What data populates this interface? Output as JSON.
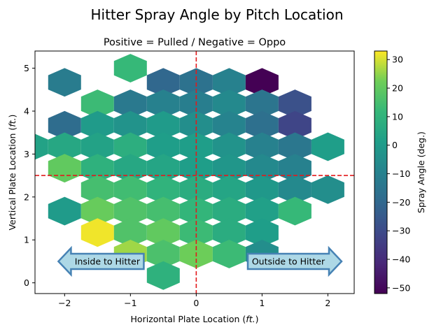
{
  "chart_data": {
    "type": "hexbin",
    "title": "Hitter Spray Angle by Pitch Location",
    "subtitle": "Positive = Pulled / Negative = Oppo",
    "xlabel": "Horizontal Plate Location ($ft.$)",
    "ylabel": "Vertical Plate Location ($ft.$)",
    "xlabel_text": "Horizontal Plate Location (",
    "xlabel_unit": "ft.",
    "ylabel_text": "Vertical Plate Location (",
    "ylabel_unit": "ft.",
    "label_close": ")",
    "xlim": [
      -2.45,
      2.4
    ],
    "ylim": [
      -0.25,
      5.4
    ],
    "xticks": [
      -2,
      -1,
      0,
      1,
      2
    ],
    "yticks": [
      0,
      1,
      2,
      3,
      4,
      5
    ],
    "reference_lines": {
      "x": 0,
      "y": 2.5,
      "color": "#e31a1c",
      "style": "dashed"
    },
    "colorbar": {
      "label": "Spray Angle (deg.)",
      "vmin": -52,
      "vmax": 33,
      "ticks": [
        30,
        20,
        10,
        0,
        -10,
        -20,
        -30,
        -40,
        -50
      ],
      "colormap": "viridis"
    },
    "hex_size_x": 0.5,
    "hex_size_y": 0.333,
    "cells": [
      {
        "x": -1.0,
        "y": 5.0,
        "value": 12
      },
      {
        "x": -2.0,
        "y": 4.67,
        "value": -12
      },
      {
        "x": -0.5,
        "y": 4.67,
        "value": -20
      },
      {
        "x": 0.0,
        "y": 4.67,
        "value": -16
      },
      {
        "x": 0.5,
        "y": 4.67,
        "value": -10
      },
      {
        "x": 1.0,
        "y": 4.67,
        "value": -52
      },
      {
        "x": -1.5,
        "y": 4.17,
        "value": 13
      },
      {
        "x": -1.0,
        "y": 4.17,
        "value": -13
      },
      {
        "x": -0.5,
        "y": 4.17,
        "value": -10
      },
      {
        "x": 0.0,
        "y": 4.17,
        "value": -11
      },
      {
        "x": 0.5,
        "y": 4.17,
        "value": -7
      },
      {
        "x": 1.0,
        "y": 4.17,
        "value": -15
      },
      {
        "x": 1.5,
        "y": 4.17,
        "value": -28
      },
      {
        "x": -2.0,
        "y": 3.67,
        "value": -18
      },
      {
        "x": -1.5,
        "y": 3.67,
        "value": 0
      },
      {
        "x": -1.0,
        "y": 3.67,
        "value": -3
      },
      {
        "x": -0.5,
        "y": 3.67,
        "value": 0
      },
      {
        "x": 0.0,
        "y": 3.67,
        "value": -5
      },
      {
        "x": 0.5,
        "y": 3.67,
        "value": -9
      },
      {
        "x": 1.0,
        "y": 3.67,
        "value": -17
      },
      {
        "x": 1.5,
        "y": 3.67,
        "value": -32
      },
      {
        "x": -2.5,
        "y": 3.17,
        "value": 3
      },
      {
        "x": -2.0,
        "y": 3.17,
        "value": 5
      },
      {
        "x": -1.5,
        "y": 3.17,
        "value": 3
      },
      {
        "x": -1.0,
        "y": 3.17,
        "value": 8
      },
      {
        "x": -0.5,
        "y": 3.17,
        "value": 1
      },
      {
        "x": 0.0,
        "y": 3.17,
        "value": 1
      },
      {
        "x": 0.5,
        "y": 3.17,
        "value": -3
      },
      {
        "x": 1.0,
        "y": 3.17,
        "value": -10
      },
      {
        "x": 1.5,
        "y": 3.17,
        "value": -14
      },
      {
        "x": 2.0,
        "y": 3.17,
        "value": 1
      },
      {
        "x": -2.0,
        "y": 2.67,
        "value": 20
      },
      {
        "x": -1.5,
        "y": 2.67,
        "value": 9
      },
      {
        "x": -1.0,
        "y": 2.67,
        "value": 5
      },
      {
        "x": -0.5,
        "y": 2.67,
        "value": 4
      },
      {
        "x": 0.0,
        "y": 2.67,
        "value": 1
      },
      {
        "x": 0.5,
        "y": 2.67,
        "value": -2
      },
      {
        "x": 1.0,
        "y": 2.67,
        "value": -7
      },
      {
        "x": 1.5,
        "y": 2.67,
        "value": -10
      },
      {
        "x": -1.5,
        "y": 2.17,
        "value": 15
      },
      {
        "x": -1.0,
        "y": 2.17,
        "value": 14
      },
      {
        "x": -0.5,
        "y": 2.17,
        "value": 10
      },
      {
        "x": 0.0,
        "y": 2.17,
        "value": 7
      },
      {
        "x": 0.5,
        "y": 2.17,
        "value": 4
      },
      {
        "x": 1.0,
        "y": 2.17,
        "value": -1
      },
      {
        "x": 1.5,
        "y": 2.17,
        "value": -7
      },
      {
        "x": 2.0,
        "y": 2.17,
        "value": -5
      },
      {
        "x": -2.0,
        "y": 1.67,
        "value": 0
      },
      {
        "x": -1.5,
        "y": 1.67,
        "value": 21
      },
      {
        "x": -1.0,
        "y": 1.67,
        "value": 17
      },
      {
        "x": -0.5,
        "y": 1.67,
        "value": 15
      },
      {
        "x": 0.0,
        "y": 1.67,
        "value": 11
      },
      {
        "x": 0.5,
        "y": 1.67,
        "value": 7
      },
      {
        "x": 1.0,
        "y": 1.67,
        "value": 2
      },
      {
        "x": 1.5,
        "y": 1.67,
        "value": 12
      },
      {
        "x": -1.5,
        "y": 1.17,
        "value": 32
      },
      {
        "x": -1.0,
        "y": 1.17,
        "value": 17
      },
      {
        "x": -0.5,
        "y": 1.17,
        "value": 20
      },
      {
        "x": 0.0,
        "y": 1.17,
        "value": 13
      },
      {
        "x": 0.5,
        "y": 1.17,
        "value": 7
      },
      {
        "x": 1.0,
        "y": 1.17,
        "value": 1
      },
      {
        "x": -1.0,
        "y": 0.67,
        "value": 26
      },
      {
        "x": -0.5,
        "y": 0.67,
        "value": 16
      },
      {
        "x": 0.0,
        "y": 0.67,
        "value": 22
      },
      {
        "x": 0.5,
        "y": 0.67,
        "value": 13
      },
      {
        "x": 1.0,
        "y": 0.67,
        "value": -5
      },
      {
        "x": -0.5,
        "y": 0.17,
        "value": 9
      }
    ],
    "annotations": [
      {
        "text": "Inside to Hitter",
        "x": -1.35,
        "y": 0.5,
        "direction": "left",
        "fill": "#add8e6",
        "edge": "#4682b4"
      },
      {
        "text": "Outside to Hitter",
        "x": 1.4,
        "y": 0.5,
        "direction": "right",
        "fill": "#add8e6",
        "edge": "#4682b4"
      }
    ]
  }
}
